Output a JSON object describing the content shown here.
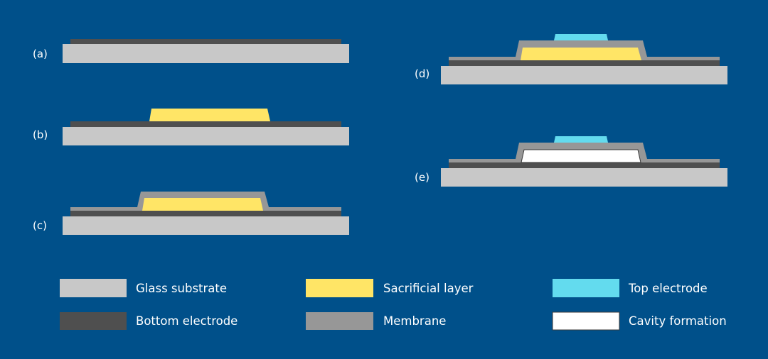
{
  "colors": {
    "background": "#00508A",
    "glass_substrate": "#C8C8C8",
    "bottom_electrode": "#4F4F4F",
    "membrane": "#979797",
    "sacrificial_layer": "#FFE566",
    "top_electrode": "#63DBEE",
    "cavity": "#FFFFFF"
  },
  "steps": {
    "a": "(a)",
    "b": "(b)",
    "c": "(c)",
    "d": "(d)",
    "e": "(e)"
  },
  "legend": {
    "glass_substrate": "Glass substrate",
    "bottom_electrode": "Bottom electrode",
    "sacrificial_layer": "Sacrificial layer",
    "membrane": "Membrane",
    "top_electrode": "Top electrode",
    "cavity_formation": "Cavity formation"
  }
}
